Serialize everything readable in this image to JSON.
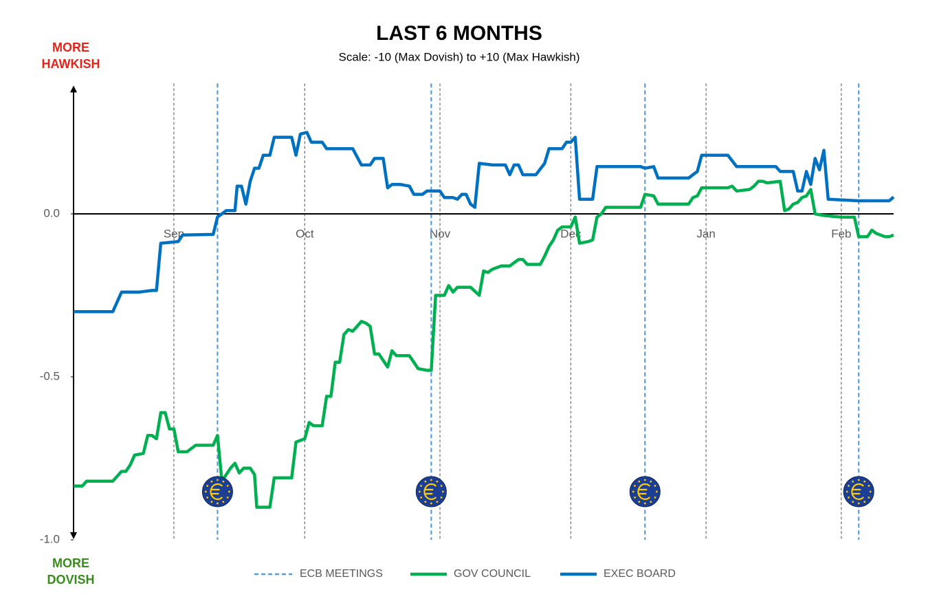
{
  "chart_data": {
    "type": "line",
    "title": "LAST 6 MONTHS",
    "subtitle": "Scale: -10 (Max Dovish)  to +10 (Max Hawkish)",
    "annotations": [
      {
        "lines": [
          "MORE",
          "HAWKISH"
        ],
        "color": "#e2231a"
      },
      {
        "lines": [
          "MORE",
          "DOVISH"
        ],
        "color": "#3a8a1f"
      }
    ],
    "xlim": [
      0,
      188
    ],
    "xticks": [
      {
        "value": 23,
        "label": "Sep"
      },
      {
        "value": 53,
        "label": "Oct"
      },
      {
        "value": 84,
        "label": "Nov"
      },
      {
        "value": 114,
        "label": "Dec"
      },
      {
        "value": 145,
        "label": "Jan"
      },
      {
        "value": 176,
        "label": "Feb"
      }
    ],
    "ylim": [
      -1.0,
      0.4
    ],
    "yticks": [
      {
        "value": 0,
        "label": "0.0"
      },
      {
        "value": -0.5,
        "label": "-0.5"
      },
      {
        "value": -1,
        "label": "-1.0"
      }
    ],
    "grid": true,
    "legend": "bottom",
    "meetings": {
      "name": "ECB MEETINGS",
      "color": "#5b9bd5",
      "x": [
        33,
        82,
        131,
        180
      ]
    },
    "series": [
      {
        "name": "GOV COUNCIL",
        "color": "#00b050",
        "x": [
          0,
          2,
          3,
          9,
          11,
          12,
          13,
          14,
          16,
          17,
          18,
          19,
          20,
          21,
          22,
          23,
          24,
          26,
          28,
          32,
          33,
          34,
          36,
          37,
          38,
          39,
          40.5,
          41.5,
          42,
          45,
          46,
          47,
          50,
          51,
          53,
          54,
          55,
          57,
          58,
          59,
          60,
          61,
          62,
          63,
          64,
          65,
          66,
          67,
          68,
          69,
          70,
          72,
          73,
          74,
          77,
          79,
          81,
          82,
          83,
          85,
          86,
          87,
          88,
          91,
          93,
          94,
          95,
          96,
          98,
          100,
          101,
          102,
          103,
          104,
          107,
          108,
          109,
          110,
          111,
          112,
          114,
          115,
          116,
          118,
          119,
          120,
          121,
          122,
          130,
          131,
          133,
          134,
          141,
          142,
          143,
          144,
          150,
          151,
          152,
          155,
          156,
          157,
          158,
          159,
          162,
          163,
          164,
          165,
          166,
          167,
          168,
          169,
          170,
          172,
          176,
          179,
          180,
          182,
          183,
          184,
          186,
          187,
          188
        ],
        "values": [
          -0.835,
          -0.835,
          -0.82,
          -0.82,
          -0.79,
          -0.79,
          -0.77,
          -0.74,
          -0.735,
          -0.68,
          -0.68,
          -0.69,
          -0.61,
          -0.61,
          -0.66,
          -0.66,
          -0.73,
          -0.73,
          -0.71,
          -0.71,
          -0.68,
          -0.82,
          -0.78,
          -0.765,
          -0.795,
          -0.78,
          -0.78,
          -0.8,
          -0.9,
          -0.9,
          -0.81,
          -0.81,
          -0.81,
          -0.7,
          -0.69,
          -0.64,
          -0.65,
          -0.65,
          -0.56,
          -0.56,
          -0.455,
          -0.455,
          -0.37,
          -0.355,
          -0.36,
          -0.345,
          -0.33,
          -0.335,
          -0.345,
          -0.43,
          -0.43,
          -0.47,
          -0.42,
          -0.435,
          -0.435,
          -0.475,
          -0.48,
          -0.48,
          -0.25,
          -0.25,
          -0.22,
          -0.24,
          -0.225,
          -0.225,
          -0.25,
          -0.175,
          -0.18,
          -0.17,
          -0.16,
          -0.16,
          -0.15,
          -0.14,
          -0.14,
          -0.155,
          -0.155,
          -0.13,
          -0.1,
          -0.08,
          -0.05,
          -0.04,
          -0.04,
          -0.01,
          -0.09,
          -0.085,
          -0.08,
          -0.01,
          0.0,
          0.02,
          0.02,
          0.06,
          0.055,
          0.03,
          0.03,
          0.05,
          0.055,
          0.08,
          0.08,
          0.085,
          0.07,
          0.075,
          0.085,
          0.1,
          0.1,
          0.095,
          0.1,
          0.01,
          0.015,
          0.03,
          0.035,
          0.05,
          0.055,
          0.075,
          0.0,
          -0.005,
          -0.01,
          -0.01,
          -0.07,
          -0.07,
          -0.05,
          -0.06,
          -0.07,
          -0.07,
          -0.065
        ]
      },
      {
        "name": "EXEC BOARD",
        "color": "#0070c0",
        "x": [
          0,
          9,
          11,
          15,
          18,
          19,
          20,
          24,
          25,
          32,
          33,
          34,
          35,
          37,
          37.5,
          38.5,
          39.5,
          40.5,
          41.5,
          42.5,
          43.5,
          45,
          46,
          50,
          51,
          52,
          53.5,
          54.5,
          57,
          58,
          64,
          66,
          68,
          69,
          71,
          72,
          73,
          75,
          77,
          78,
          80,
          81,
          84,
          85,
          87,
          88,
          89,
          90,
          91,
          92,
          93,
          96,
          99,
          100,
          101,
          102,
          103,
          106,
          108,
          109,
          112,
          113,
          114,
          115,
          116,
          119,
          120,
          130,
          131,
          133,
          134,
          141,
          142,
          143,
          144,
          150,
          152,
          161,
          162,
          165,
          166,
          167,
          168,
          169,
          170,
          171,
          172,
          173,
          180,
          187,
          188
        ],
        "values": [
          -0.3,
          -0.3,
          -0.24,
          -0.24,
          -0.235,
          -0.235,
          -0.09,
          -0.085,
          -0.065,
          -0.063,
          -0.01,
          0.0,
          0.01,
          0.01,
          0.085,
          0.085,
          0.03,
          0.1,
          0.14,
          0.14,
          0.18,
          0.18,
          0.235,
          0.235,
          0.18,
          0.245,
          0.25,
          0.22,
          0.22,
          0.2,
          0.2,
          0.15,
          0.15,
          0.17,
          0.17,
          0.08,
          0.09,
          0.09,
          0.085,
          0.06,
          0.06,
          0.07,
          0.07,
          0.05,
          0.05,
          0.045,
          0.06,
          0.06,
          0.03,
          0.02,
          0.155,
          0.15,
          0.15,
          0.12,
          0.15,
          0.15,
          0.12,
          0.12,
          0.155,
          0.2,
          0.2,
          0.22,
          0.22,
          0.235,
          0.045,
          0.045,
          0.145,
          0.145,
          0.14,
          0.145,
          0.11,
          0.11,
          0.12,
          0.13,
          0.18,
          0.18,
          0.145,
          0.145,
          0.13,
          0.13,
          0.07,
          0.07,
          0.13,
          0.09,
          0.17,
          0.135,
          0.195,
          0.045,
          0.04,
          0.04,
          0.052
        ]
      }
    ]
  }
}
